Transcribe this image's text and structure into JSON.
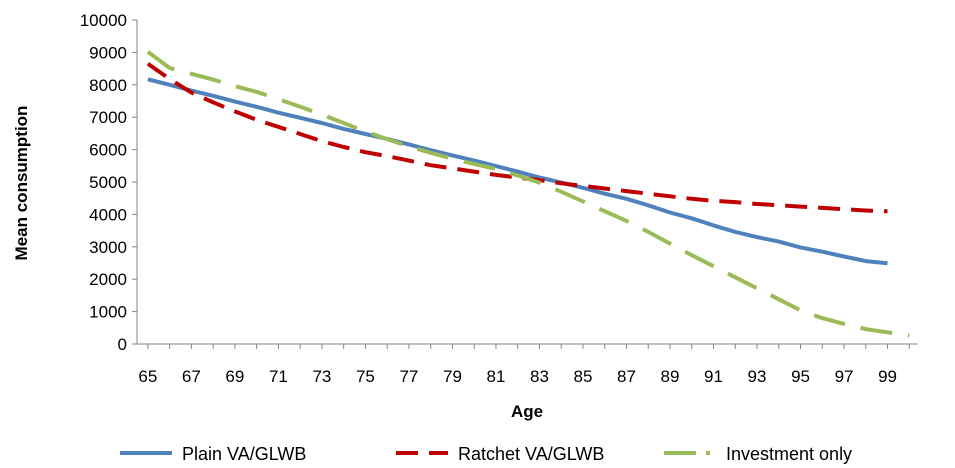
{
  "chart_data": {
    "type": "line",
    "title": "",
    "xlabel": "Age",
    "ylabel": "Mean consumption",
    "ylim": [
      0,
      10000
    ],
    "yticks": [
      0,
      1000,
      2000,
      3000,
      4000,
      5000,
      6000,
      7000,
      8000,
      9000,
      10000
    ],
    "xticks": [
      65,
      67,
      69,
      71,
      73,
      75,
      77,
      79,
      81,
      83,
      85,
      87,
      89,
      91,
      93,
      95,
      97,
      99
    ],
    "x": [
      65,
      66,
      67,
      68,
      69,
      70,
      71,
      72,
      73,
      74,
      75,
      76,
      77,
      78,
      79,
      80,
      81,
      82,
      83,
      84,
      85,
      86,
      87,
      88,
      89,
      90,
      91,
      92,
      93,
      94,
      95,
      96,
      97,
      98,
      99,
      100
    ],
    "grid": false,
    "legend_position": "bottom",
    "series": [
      {
        "name": "Plain VA/GLWB",
        "color": "#4f81bd",
        "dash": "solid",
        "values": [
          8170,
          8000,
          7820,
          7660,
          7480,
          7320,
          7140,
          6980,
          6820,
          6640,
          6480,
          6330,
          6160,
          5980,
          5820,
          5660,
          5490,
          5320,
          5140,
          4980,
          4820,
          4640,
          4480,
          4280,
          4060,
          3880,
          3660,
          3460,
          3300,
          3160,
          2980,
          2850,
          2700,
          2560,
          2490,
          null
        ]
      },
      {
        "name": "Ratchet VA/GLWB",
        "color": "#c00000",
        "dash": "dashed",
        "values": [
          8650,
          8180,
          7760,
          7460,
          7180,
          6920,
          6700,
          6480,
          6260,
          6080,
          5920,
          5800,
          5660,
          5520,
          5420,
          5320,
          5220,
          5140,
          5060,
          4960,
          4880,
          4800,
          4720,
          4640,
          4560,
          4480,
          4420,
          4380,
          4320,
          4280,
          4240,
          4200,
          4160,
          4120,
          4100,
          null
        ]
      },
      {
        "name": "Investment only",
        "color": "#9bbb59",
        "dash": "long-dash",
        "values": [
          9020,
          8520,
          8340,
          8160,
          7960,
          7780,
          7560,
          7320,
          7080,
          6820,
          6560,
          6320,
          6100,
          5900,
          5720,
          5560,
          5400,
          5200,
          4980,
          4700,
          4400,
          4100,
          3800,
          3460,
          3100,
          2740,
          2400,
          2060,
          1720,
          1380,
          1040,
          800,
          620,
          460,
          360,
          260
        ]
      }
    ]
  }
}
